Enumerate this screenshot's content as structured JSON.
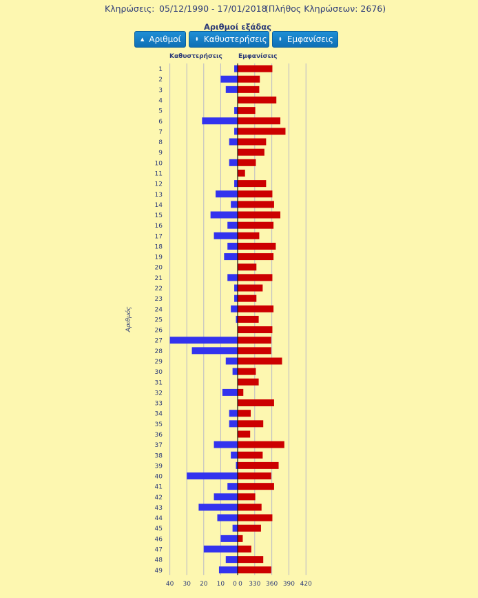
{
  "header": {
    "label": "Κληρώσεις:",
    "date_range": "05/12/1990 - 17/01/2018",
    "draw_count": "(Πλήθος Κληρώσεων: 2676)"
  },
  "subtitle": "Αριθμοί εξάδας",
  "buttons": [
    {
      "label": "Αριθμοί",
      "icon": "caret-up-icon"
    },
    {
      "label": "Καθυστερήσεις",
      "icon": "sort-icon"
    },
    {
      "label": "Εμφανίσεις",
      "icon": "sort-icon"
    }
  ],
  "chart_data": {
    "type": "bar",
    "orientation": "horizontal",
    "ylabel": "Αριθμός",
    "categories": [
      "1",
      "2",
      "3",
      "4",
      "5",
      "6",
      "7",
      "8",
      "9",
      "10",
      "11",
      "12",
      "13",
      "14",
      "15",
      "16",
      "17",
      "18",
      "19",
      "20",
      "21",
      "22",
      "23",
      "24",
      "25",
      "26",
      "27",
      "28",
      "29",
      "30",
      "31",
      "32",
      "33",
      "34",
      "35",
      "36",
      "37",
      "38",
      "39",
      "40",
      "41",
      "42",
      "43",
      "44",
      "45",
      "46",
      "47",
      "48",
      "49"
    ],
    "series": [
      {
        "name": "Καθυστερήσεις",
        "color": "#3333ee",
        "values": [
          2,
          10,
          7,
          0,
          2,
          21,
          2,
          5,
          0,
          5,
          0,
          2,
          13,
          4,
          16,
          6,
          14,
          6,
          8,
          0,
          6,
          2,
          2,
          4,
          1,
          0,
          40,
          27,
          7,
          3,
          0,
          9,
          0,
          5,
          5,
          0,
          14,
          4,
          1,
          30,
          6,
          14,
          23,
          12,
          3,
          10,
          20,
          7,
          11
        ],
        "xlim": [
          0,
          40
        ],
        "xticks": [
          "40",
          "30",
          "20",
          "10",
          "0"
        ]
      },
      {
        "name": "Εμφανίσεις",
        "color": "#cc0000",
        "values": [
          361,
          339,
          338,
          368,
          331,
          375,
          384,
          350,
          347,
          332,
          313,
          350,
          361,
          364,
          375,
          363,
          338,
          367,
          363,
          333,
          361,
          344,
          333,
          363,
          337,
          361,
          359,
          359,
          378,
          332,
          337,
          310,
          364,
          323,
          345,
          322,
          382,
          344,
          372,
          359,
          364,
          331,
          342,
          361,
          341,
          309,
          324,
          345,
          359
        ],
        "xlim": [
          300,
          430
        ],
        "xticks": [
          "0",
          "330",
          "360",
          "390",
          "420"
        ]
      }
    ],
    "grid": true
  }
}
